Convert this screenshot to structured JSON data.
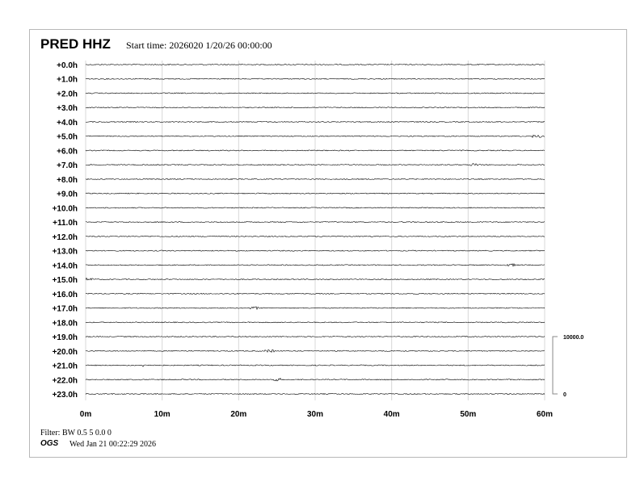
{
  "header": {
    "station": "PRED HHZ",
    "start_time": "Start time: 2026020  1/20/26 00:00:00"
  },
  "footer": {
    "filter": "Filter: BW 0.5 5 0.0 0",
    "org": "OGS",
    "timestamp": "Wed Jan 21 00:22:29 2026"
  },
  "chart_data": {
    "type": "line",
    "title": "PRED HHZ",
    "row_labels": [
      "+0.0h",
      "+1.0h",
      "+2.0h",
      "+3.0h",
      "+4.0h",
      "+5.0h",
      "+6.0h",
      "+7.0h",
      "+8.0h",
      "+9.0h",
      "+10.0h",
      "+11.0h",
      "+12.0h",
      "+13.0h",
      "+14.0h",
      "+15.0h",
      "+16.0h",
      "+17.0h",
      "+18.0h",
      "+19.0h",
      "+20.0h",
      "+21.0h",
      "+22.0h",
      "+23.0h"
    ],
    "x_ticks": [
      "0m",
      "10m",
      "20m",
      "30m",
      "40m",
      "50m",
      "60m"
    ],
    "x_range_minutes": [
      0,
      60
    ],
    "grid": "vertical",
    "trace_color": "#000000",
    "grid_color": "#d8d8d8",
    "scale": {
      "top_label": "10000.0",
      "bottom_label": "0"
    },
    "events": [
      {
        "row": 5,
        "minute": 59
      },
      {
        "row": 7,
        "minute": 51
      },
      {
        "row": 14,
        "minute": 55.5
      },
      {
        "row": 15,
        "minute": 0.5
      },
      {
        "row": 17,
        "minute": 22
      },
      {
        "row": 20,
        "minute": 24
      },
      {
        "row": 21,
        "minute": 8
      },
      {
        "row": 22,
        "minute": 25
      }
    ]
  }
}
